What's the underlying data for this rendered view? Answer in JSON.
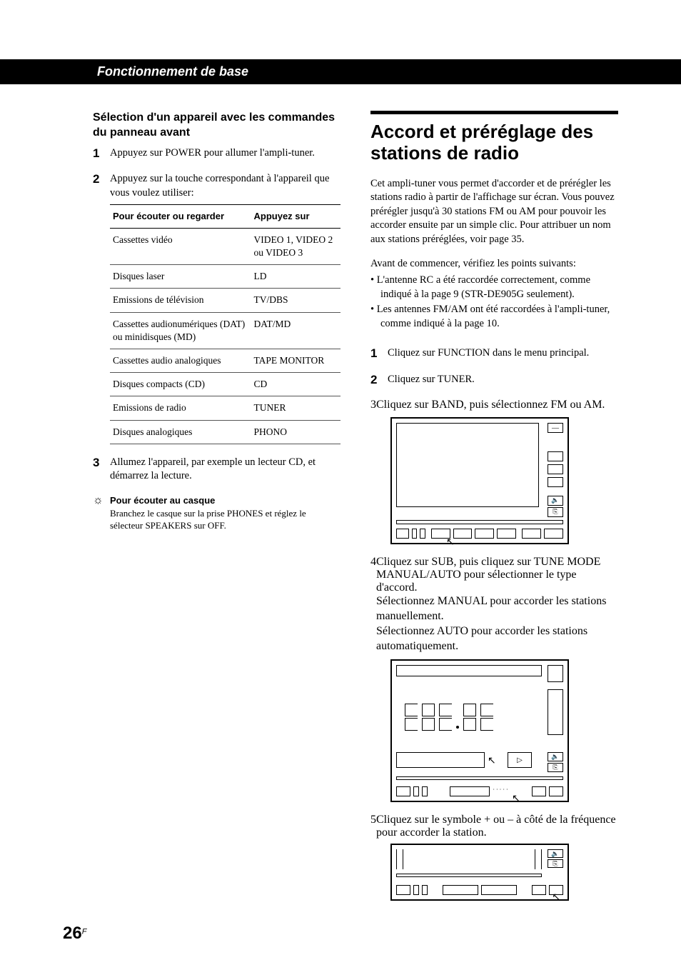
{
  "header": {
    "title": "Fonctionnement de base"
  },
  "left": {
    "section_title": "Sélection d'un appareil avec les commandes du panneau avant",
    "steps": [
      {
        "n": "1",
        "text": "Appuyez sur POWER pour allumer l'ampli-tuner."
      },
      {
        "n": "2",
        "text": "Appuyez sur la touche correspondant à l'appareil que vous voulez utiliser:"
      },
      {
        "n": "3",
        "text": "Allumez l'appareil, par exemple un lecteur CD, et démarrez la lecture."
      }
    ],
    "table": {
      "head": [
        "Pour écouter ou regarder",
        "Appuyez sur"
      ],
      "rows": [
        [
          "Cassettes vidéo",
          "VIDEO 1, VIDEO 2 ou VIDEO 3"
        ],
        [
          "Disques laser",
          "LD"
        ],
        [
          "Emissions de télévision",
          "TV/DBS"
        ],
        [
          "Cassettes audionumériques (DAT) ou minidisques (MD)",
          "DAT/MD"
        ],
        [
          "Cassettes audio analogiques",
          "TAPE MONITOR"
        ],
        [
          "Disques compacts (CD)",
          "CD"
        ],
        [
          "Emissions de radio",
          "TUNER"
        ],
        [
          "Disques analogiques",
          "PHONO"
        ]
      ]
    },
    "tip": {
      "title": "Pour écouter au casque",
      "text": "Branchez le casque sur la prise PHONES et réglez le sélecteur SPEAKERS sur OFF."
    }
  },
  "right": {
    "title": "Accord et préréglage des stations de radio",
    "intro": "Cet ampli-tuner vous permet d'accorder et de prérégler les stations radio à partir de l'affichage sur écran. Vous pouvez prérégler jusqu'à 30 stations FM ou AM pour pouvoir les accorder ensuite par un simple clic. Pour attribuer un nom aux stations préréglées, voir page 35.",
    "precheck_lead": "Avant de commencer, vérifiez les points suivants:",
    "precheck": [
      "L'antenne RC a été raccordée correctement, comme indiqué à la page 9 (STR-DE905G seulement).",
      "Les antennes FM/AM ont été raccordées à l'ampli-tuner, comme indiqué à la page 10."
    ],
    "steps": [
      {
        "n": "1",
        "text": "Cliquez sur FUNCTION dans le menu principal."
      },
      {
        "n": "2",
        "text": "Cliquez sur TUNER."
      },
      {
        "n": "3",
        "text": "Cliquez sur BAND, puis sélectionnez FM ou AM."
      },
      {
        "n": "4",
        "text": "Cliquez sur SUB, puis cliquez sur TUNE MODE MANUAL/AUTO pour sélectionner le type d'accord.",
        "extra": [
          "Sélectionnez MANUAL pour accorder les stations manuellement.",
          "Sélectionnez AUTO pour accorder les stations automatiquement."
        ]
      },
      {
        "n": "5",
        "text": "Cliquez sur le symbole + ou – à côté de la fréquence pour accorder la station."
      }
    ]
  },
  "page": {
    "num": "26",
    "sup": "F"
  },
  "glyphs": {
    "tip": "☼",
    "cursor": "↖",
    "speaker": "🔈",
    "exit": "⎘",
    "play": "▷",
    "minus": "—"
  }
}
